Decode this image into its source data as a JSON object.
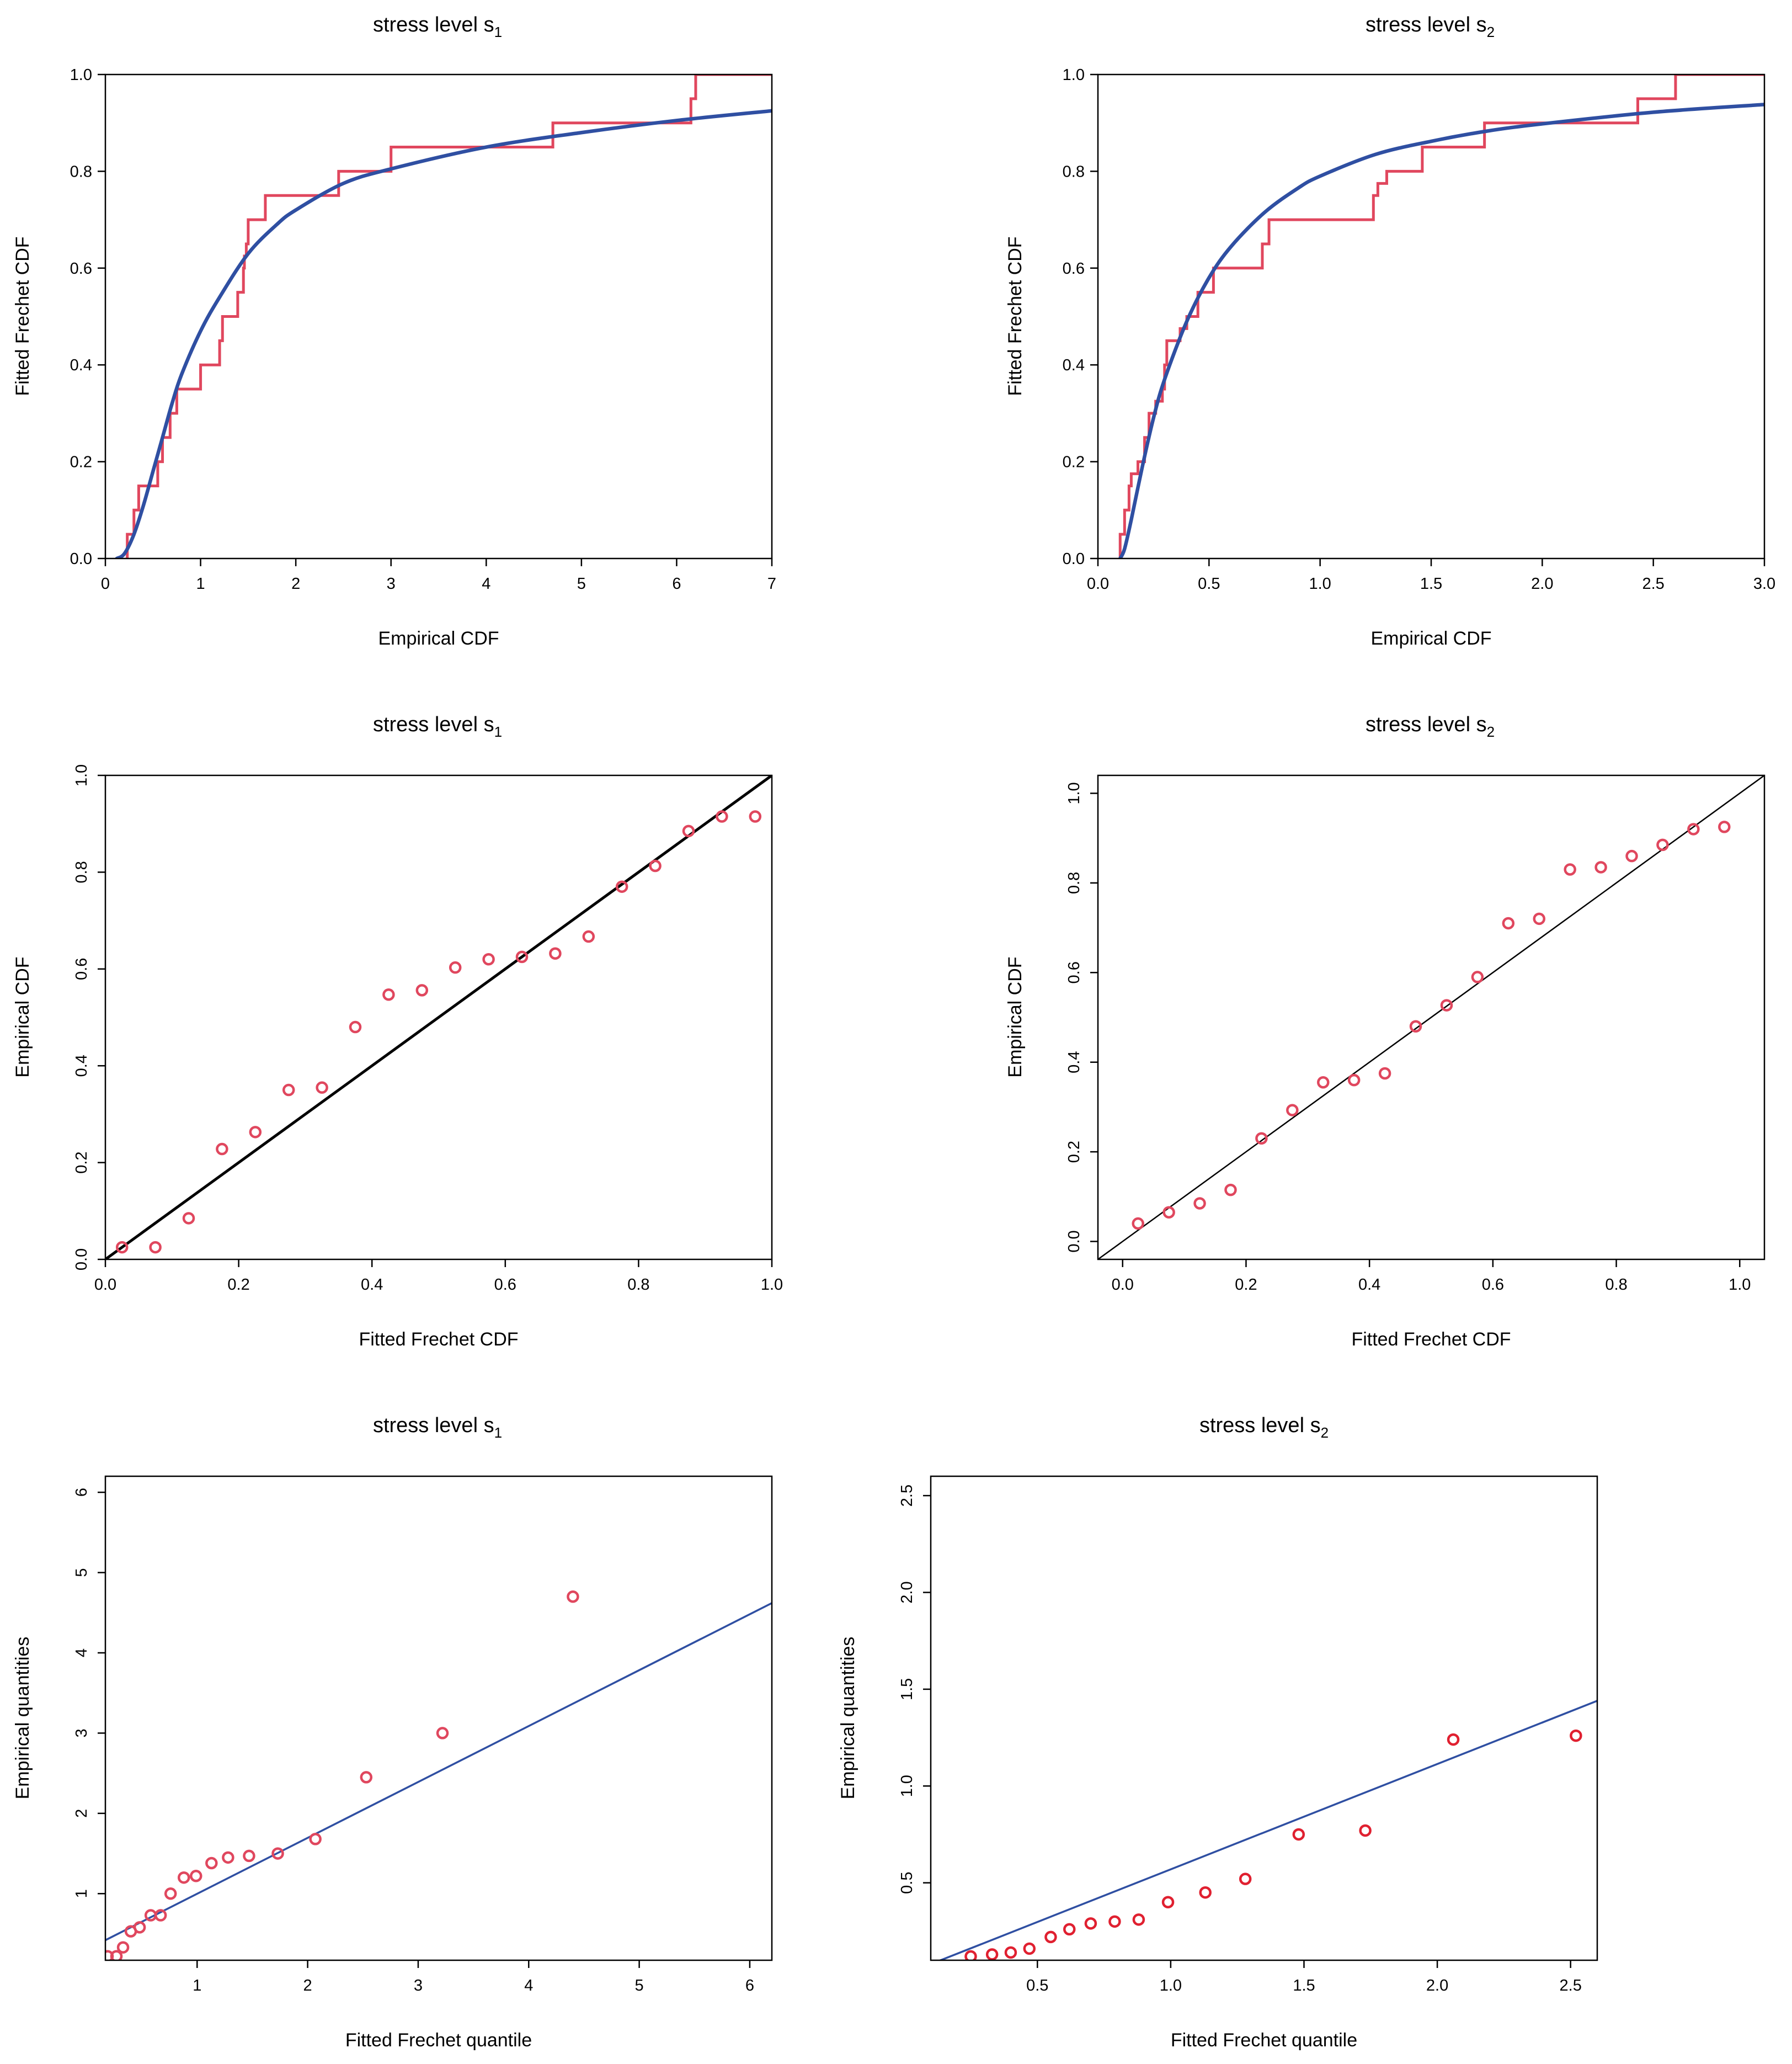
{
  "colors": {
    "red": "#E0475E",
    "blue": "#2F4FA2",
    "black": "#000000",
    "point_red": "#E02030"
  },
  "chart_data": [
    {
      "id": "cdf-s1",
      "type": "line",
      "title_prefix": "stress level s",
      "title_sub": "1",
      "xlabel": "Empirical CDF",
      "ylabel": "Fitted Frechet CDF",
      "xlim": [
        0,
        7
      ],
      "ylim": [
        0,
        1
      ],
      "xticks": [
        0,
        1,
        2,
        3,
        4,
        5,
        6,
        7
      ],
      "xtick_labels": [
        "0",
        "1",
        "2",
        "3",
        "4",
        "5",
        "6",
        "7"
      ],
      "yticks": [
        0,
        0.2,
        0.4,
        0.6,
        0.8,
        1.0
      ],
      "ytick_labels": [
        "0.0",
        "0.2",
        "0.4",
        "0.6",
        "0.8",
        "1.0"
      ],
      "ytick_rotate": false,
      "series": [
        {
          "name": "empirical-step-cdf",
          "kind": "step",
          "color": "red",
          "x": [
            0.23,
            0.3,
            0.35,
            0.55,
            0.6,
            0.68,
            0.75,
            1.0,
            1.2,
            1.23,
            1.39,
            1.45,
            1.46,
            1.48,
            1.5,
            1.68,
            2.45,
            3.0,
            4.7,
            6.15,
            6.2,
            7.0
          ],
          "y": [
            0.05,
            0.1,
            0.15,
            0.2,
            0.25,
            0.3,
            0.35,
            0.4,
            0.45,
            0.5,
            0.55,
            0.6,
            0.625,
            0.65,
            0.7,
            0.75,
            0.8,
            0.85,
            0.9,
            0.95,
            1.0,
            1.0
          ]
        },
        {
          "name": "fitted-frechet-cdf",
          "kind": "curve",
          "color": "blue",
          "x_from": 0.12,
          "x_to": 7.0,
          "x": [
            0.12,
            0.2,
            0.3,
            0.4,
            0.5,
            0.6,
            0.7,
            0.8,
            1.0,
            1.2,
            1.5,
            1.8,
            2.0,
            2.5,
            3.0,
            4.0,
            5.0,
            6.0,
            7.0
          ],
          "y": [
            0.0,
            0.01,
            0.05,
            0.11,
            0.18,
            0.25,
            0.32,
            0.38,
            0.47,
            0.54,
            0.63,
            0.69,
            0.72,
            0.775,
            0.805,
            0.85,
            0.88,
            0.905,
            0.925
          ]
        }
      ]
    },
    {
      "id": "cdf-s2",
      "type": "line",
      "title_prefix": "stress level s",
      "title_sub": "2",
      "xlabel": "Empirical CDF",
      "ylabel": "Fitted Frechet CDF",
      "xlim": [
        0,
        3
      ],
      "ylim": [
        0,
        1
      ],
      "xticks": [
        0,
        0.5,
        1.0,
        1.5,
        2.0,
        2.5,
        3.0
      ],
      "xtick_labels": [
        "0.0",
        "0.5",
        "1.0",
        "1.5",
        "2.0",
        "2.5",
        "3.0"
      ],
      "yticks": [
        0,
        0.2,
        0.4,
        0.6,
        0.8,
        1.0
      ],
      "ytick_labels": [
        "0.0",
        "0.2",
        "0.4",
        "0.6",
        "0.8",
        "1.0"
      ],
      "ytick_rotate": false,
      "series": [
        {
          "name": "empirical-step-cdf",
          "kind": "step",
          "color": "red",
          "x": [
            0.1,
            0.12,
            0.14,
            0.15,
            0.18,
            0.21,
            0.23,
            0.26,
            0.29,
            0.3,
            0.31,
            0.37,
            0.4,
            0.45,
            0.52,
            0.74,
            0.77,
            1.24,
            1.26,
            1.3,
            1.46,
            1.74,
            2.43,
            2.6,
            3.0
          ],
          "y": [
            0.05,
            0.1,
            0.15,
            0.175,
            0.2,
            0.25,
            0.3,
            0.325,
            0.35,
            0.4,
            0.45,
            0.475,
            0.5,
            0.55,
            0.6,
            0.65,
            0.7,
            0.75,
            0.775,
            0.8,
            0.85,
            0.9,
            0.95,
            1.0,
            1.0
          ]
        },
        {
          "name": "fitted-frechet-cdf",
          "kind": "curve",
          "color": "blue",
          "x": [
            0.1,
            0.12,
            0.15,
            0.2,
            0.25,
            0.3,
            0.4,
            0.5,
            0.6,
            0.75,
            0.9,
            1.0,
            1.25,
            1.5,
            1.75,
            2.0,
            2.5,
            3.0
          ],
          "y": [
            0.0,
            0.02,
            0.08,
            0.19,
            0.29,
            0.37,
            0.49,
            0.58,
            0.645,
            0.715,
            0.765,
            0.79,
            0.835,
            0.862,
            0.883,
            0.898,
            0.922,
            0.938
          ]
        }
      ]
    },
    {
      "id": "pp-s1",
      "type": "scatter",
      "title_prefix": "stress level s",
      "title_sub": "1",
      "xlabel": "Fitted Frechet CDF",
      "ylabel": "Empirical CDF",
      "xlim": [
        0,
        1
      ],
      "ylim": [
        0,
        1
      ],
      "xticks": [
        0,
        0.2,
        0.4,
        0.6,
        0.8,
        1.0
      ],
      "xtick_labels": [
        "0.0",
        "0.2",
        "0.4",
        "0.6",
        "0.8",
        "1.0"
      ],
      "yticks": [
        0,
        0.2,
        0.4,
        0.6,
        0.8,
        1.0
      ],
      "ytick_labels": [
        "0.0",
        "0.2",
        "0.4",
        "0.6",
        "0.8",
        "1.0"
      ],
      "ytick_rotate": true,
      "reference_line": {
        "from": [
          0,
          0
        ],
        "to": [
          1,
          1
        ],
        "color": "black",
        "width": 5
      },
      "points": {
        "color": "red",
        "x": [
          0.025,
          0.075,
          0.125,
          0.175,
          0.225,
          0.275,
          0.325,
          0.375,
          0.425,
          0.475,
          0.525,
          0.575,
          0.625,
          0.675,
          0.725,
          0.775,
          0.825,
          0.875,
          0.925,
          0.975
        ],
        "y": [
          0.025,
          0.025,
          0.085,
          0.228,
          0.263,
          0.35,
          0.355,
          0.48,
          0.547,
          0.556,
          0.603,
          0.62,
          0.625,
          0.632,
          0.667,
          0.77,
          0.813,
          0.885,
          0.915,
          0.915
        ]
      }
    },
    {
      "id": "pp-s2",
      "type": "scatter",
      "title_prefix": "stress level s",
      "title_sub": "2",
      "xlabel": "Fitted Frechet CDF",
      "ylabel": "Empirical CDF",
      "xlim": [
        -0.04,
        1.04
      ],
      "ylim": [
        -0.04,
        1.04
      ],
      "xticks": [
        0,
        0.2,
        0.4,
        0.6,
        0.8,
        1.0
      ],
      "xtick_labels": [
        "0.0",
        "0.2",
        "0.4",
        "0.6",
        "0.8",
        "1.0"
      ],
      "yticks": [
        0,
        0.2,
        0.4,
        0.6,
        0.8,
        1.0
      ],
      "ytick_labels": [
        "0.0",
        "0.2",
        "0.4",
        "0.6",
        "0.8",
        "1.0"
      ],
      "ytick_rotate": true,
      "reference_line": {
        "from": [
          -0.04,
          -0.04
        ],
        "to": [
          1.04,
          1.04
        ],
        "color": "black",
        "width": 2.5
      },
      "points": {
        "color": "red",
        "x": [
          0.025,
          0.075,
          0.125,
          0.175,
          0.225,
          0.275,
          0.325,
          0.375,
          0.425,
          0.475,
          0.525,
          0.575,
          0.625,
          0.675,
          0.725,
          0.775,
          0.825,
          0.875,
          0.925,
          0.975
        ],
        "y": [
          0.04,
          0.065,
          0.085,
          0.115,
          0.23,
          0.293,
          0.355,
          0.36,
          0.375,
          0.48,
          0.527,
          0.59,
          0.71,
          0.72,
          0.83,
          0.835,
          0.86,
          0.885,
          0.92,
          0.925
        ]
      }
    },
    {
      "id": "qq-s1",
      "type": "scatter",
      "title_prefix": "stress level s",
      "title_sub": "1",
      "xlabel": "Fitted Frechet quantile",
      "ylabel": "Empirical quantities",
      "xlim": [
        0.17,
        6.2
      ],
      "ylim": [
        0.17,
        6.2
      ],
      "xticks": [
        1,
        2,
        3,
        4,
        5,
        6
      ],
      "xtick_labels": [
        "1",
        "2",
        "3",
        "4",
        "5",
        "6"
      ],
      "yticks": [
        1,
        2,
        3,
        4,
        5,
        6
      ],
      "ytick_labels": [
        "1",
        "2",
        "3",
        "4",
        "5",
        "6"
      ],
      "ytick_rotate": true,
      "reference_line": {
        "from": [
          0.17,
          0.42
        ],
        "to": [
          6.2,
          4.62
        ],
        "color": "blue",
        "width": 3.5
      },
      "points": {
        "color": "red",
        "x": [
          0.19,
          0.27,
          0.33,
          0.4,
          0.48,
          0.58,
          0.67,
          0.76,
          0.88,
          0.99,
          1.13,
          1.28,
          1.47,
          1.73,
          2.07,
          2.53,
          3.22,
          4.4
        ],
        "y": [
          0.22,
          0.22,
          0.33,
          0.53,
          0.58,
          0.73,
          0.73,
          1.0,
          1.2,
          1.22,
          1.38,
          1.45,
          1.47,
          1.5,
          1.68,
          2.45,
          3.0,
          4.7
        ]
      }
    },
    {
      "id": "qq-s2",
      "type": "scatter",
      "title_prefix": "stress level s",
      "title_sub": "2",
      "xlabel": "Fitted Frechet quantile",
      "ylabel": "Empirical quantities",
      "xlim": [
        0.1,
        2.6
      ],
      "ylim": [
        0.1,
        2.6
      ],
      "xticks": [
        0.5,
        1.0,
        1.5,
        2.0,
        2.5
      ],
      "xtick_labels": [
        "0.5",
        "1.0",
        "1.5",
        "2.0",
        "2.5"
      ],
      "yticks": [
        0.5,
        1.0,
        1.5,
        2.0,
        2.5
      ],
      "ytick_labels": [
        "0.5",
        "1.0",
        "1.5",
        "2.0",
        "2.5"
      ],
      "ytick_rotate": true,
      "reference_line": {
        "from": [
          0.1,
          0.08
        ],
        "to": [
          2.6,
          1.44
        ],
        "color": "blue",
        "width": 3.5
      },
      "points": {
        "color": "point_red",
        "x": [
          0.25,
          0.33,
          0.4,
          0.47,
          0.55,
          0.62,
          0.7,
          0.79,
          0.88,
          0.99,
          1.13,
          1.28,
          1.48,
          1.73,
          2.06,
          2.52
        ],
        "y": [
          0.12,
          0.13,
          0.14,
          0.16,
          0.22,
          0.26,
          0.29,
          0.3,
          0.31,
          0.4,
          0.45,
          0.52,
          0.75,
          0.77,
          1.24,
          1.26
        ]
      }
    }
  ]
}
